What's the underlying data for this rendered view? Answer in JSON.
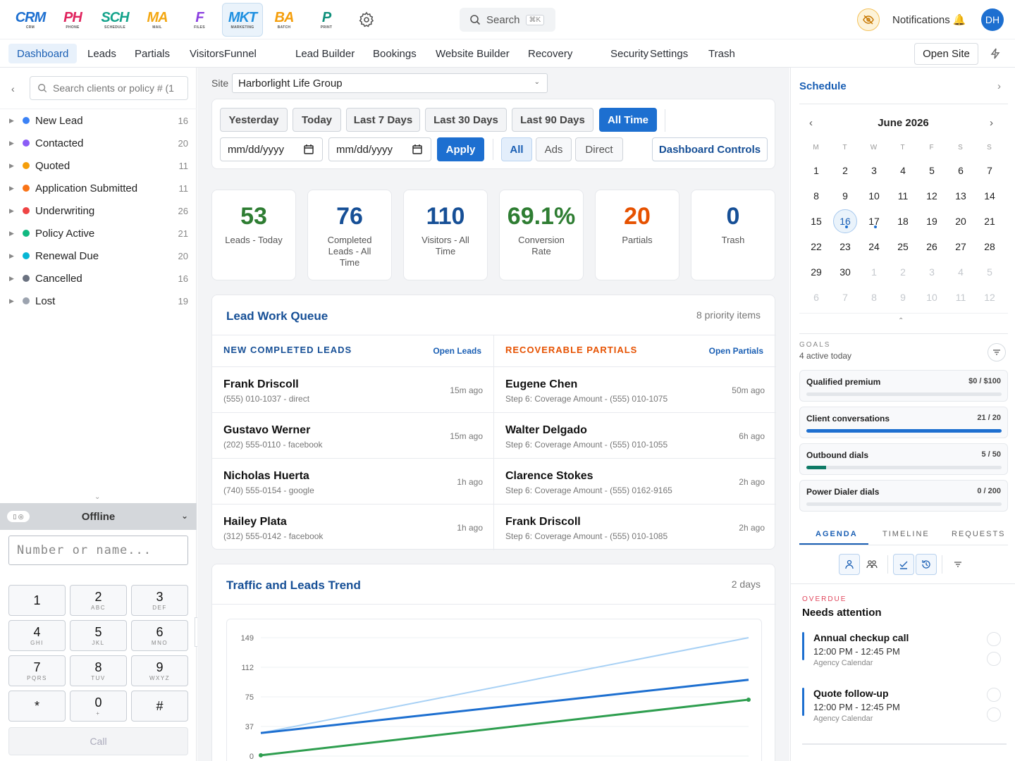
{
  "apps": [
    {
      "name": "crm",
      "logo": "CRM",
      "sub": "CRM",
      "color": "#1d6fd0"
    },
    {
      "name": "phone",
      "logo": "PH",
      "sub": "PHONE",
      "color": "#e0245e"
    },
    {
      "name": "schedule",
      "logo": "SCH",
      "sub": "SCHEDULE",
      "color": "#14a38b"
    },
    {
      "name": "mail",
      "logo": "MA",
      "sub": "MAIL",
      "color": "#f3a712"
    },
    {
      "name": "files",
      "logo": "F",
      "sub": "FILES",
      "color": "#8b3fe0"
    },
    {
      "name": "marketing",
      "logo": "MKT",
      "sub": "MARKETING",
      "color": "#1d8fe0"
    },
    {
      "name": "batch",
      "logo": "BA",
      "sub": "BATCH",
      "color": "#f59e0b"
    },
    {
      "name": "print",
      "logo": "P",
      "sub": "PRINT",
      "color": "#0e8f7a"
    }
  ],
  "search": {
    "label": "Search",
    "kbd": "⌘K"
  },
  "notifications": {
    "label": "Notifications"
  },
  "user": {
    "initials": "DH"
  },
  "nav": [
    "Dashboard",
    "Leads",
    "Partials",
    "Visitors",
    "Funnel",
    "Lead Builder",
    "Bookings",
    "Website Builder",
    "Recovery",
    "Security",
    "Settings",
    "Trash"
  ],
  "nav_right": {
    "open_site": "Open Site"
  },
  "left": {
    "search_placeholder": "Search clients or policy # (1",
    "stages": [
      {
        "label": "New Lead",
        "count": "16",
        "color": "#3b82f6"
      },
      {
        "label": "Contacted",
        "count": "20",
        "color": "#8b5cf6"
      },
      {
        "label": "Quoted",
        "count": "11",
        "color": "#f59e0b"
      },
      {
        "label": "Application Submitted",
        "count": "11",
        "color": "#f97316"
      },
      {
        "label": "Underwriting",
        "count": "26",
        "color": "#ef4444"
      },
      {
        "label": "Policy Active",
        "count": "21",
        "color": "#10b981"
      },
      {
        "label": "Renewal Due",
        "count": "20",
        "color": "#06b6d4"
      },
      {
        "label": "Cancelled",
        "count": "16",
        "color": "#6b7280"
      },
      {
        "label": "Lost",
        "count": "19",
        "color": "#9ca3af"
      }
    ],
    "dialer": {
      "status": "Offline",
      "placeholder": "Number or name...",
      "keys": [
        {
          "d": "1",
          "s": ""
        },
        {
          "d": "2",
          "s": "ABC"
        },
        {
          "d": "3",
          "s": "DEF"
        },
        {
          "d": "4",
          "s": "GHI"
        },
        {
          "d": "5",
          "s": "JKL"
        },
        {
          "d": "6",
          "s": "MNO"
        },
        {
          "d": "7",
          "s": "PQRS"
        },
        {
          "d": "8",
          "s": "TUV"
        },
        {
          "d": "9",
          "s": "WXYZ"
        },
        {
          "d": "*",
          "s": ""
        },
        {
          "d": "0",
          "s": "+"
        },
        {
          "d": "#",
          "s": ""
        }
      ],
      "call": "Call"
    }
  },
  "main": {
    "site_label": "Site",
    "site_value": "Harborlight Life Group",
    "ranges": [
      "Yesterday",
      "Today",
      "Last 7 Days",
      "Last 30 Days",
      "Last 90 Days",
      "All Time"
    ],
    "date_placeholder": "mm/dd/yyyy",
    "apply": "Apply",
    "sources": [
      "All",
      "Ads",
      "Direct"
    ],
    "dashboard_controls": "Dashboard Controls",
    "stats": [
      {
        "value": "53",
        "label": "Leads - Today",
        "color": "#2e7d32"
      },
      {
        "value": "76",
        "label": "Completed Leads - All Time",
        "color": "#164f96"
      },
      {
        "value": "110",
        "label": "Visitors - All Time",
        "color": "#164f96"
      },
      {
        "value": "69.1%",
        "label": "Conversion Rate",
        "color": "#2e7d32"
      },
      {
        "value": "20",
        "label": "Partials",
        "color": "#e65100"
      },
      {
        "value": "0",
        "label": "Trash",
        "color": "#164f96"
      }
    ],
    "queue": {
      "title": "Lead Work Queue",
      "meta": "8 priority items",
      "left_head": "NEW COMPLETED LEADS",
      "left_link": "Open Leads",
      "right_head": "RECOVERABLE PARTIALS",
      "right_link": "Open Partials",
      "left_rows": [
        {
          "name": "Frank Driscoll",
          "sub": "(555) 010-1037 - direct",
          "time": "15m ago"
        },
        {
          "name": "Gustavo Werner",
          "sub": "(202) 555-0110 - facebook",
          "time": "15m ago"
        },
        {
          "name": "Nicholas Huerta",
          "sub": "(740) 555-0154 - google",
          "time": "1h ago"
        },
        {
          "name": "Hailey Plata",
          "sub": "(312) 555-0142 - facebook",
          "time": "1h ago"
        }
      ],
      "right_rows": [
        {
          "name": "Eugene Chen",
          "sub": "Step 6: Coverage Amount - (555) 010-1075",
          "time": "50m ago"
        },
        {
          "name": "Walter Delgado",
          "sub": "Step 6: Coverage Amount - (555) 010-1055",
          "time": "6h ago"
        },
        {
          "name": "Clarence Stokes",
          "sub": "Step 6: Coverage Amount - (555) 0162-9165",
          "time": "2h ago"
        },
        {
          "name": "Frank Driscoll",
          "sub": "Step 6: Coverage Amount - (555) 010-1085",
          "time": "2h ago"
        }
      ]
    },
    "trend": {
      "title": "Traffic and Leads Trend",
      "meta": "2 days"
    }
  },
  "chart_data": {
    "type": "line",
    "x": [
      0,
      1
    ],
    "yticks": [
      "149",
      "112",
      "75",
      "37",
      "0"
    ],
    "ylim": [
      0,
      149
    ],
    "series": [
      {
        "color": "#a8d1f5",
        "values": [
          29,
          149
        ]
      },
      {
        "color": "#1d6fd0",
        "values": [
          29,
          96
        ]
      },
      {
        "color": "#2e9e4f",
        "values": [
          1,
          71
        ]
      }
    ]
  },
  "right": {
    "title": "Schedule",
    "month": "June 2026",
    "weekdays": [
      "M",
      "T",
      "W",
      "T",
      "F",
      "S",
      "S"
    ],
    "weeks": [
      [
        "1",
        "2",
        "3",
        "4",
        "5",
        "6",
        "7"
      ],
      [
        "8",
        "9",
        "10",
        "11",
        "12",
        "13",
        "14"
      ],
      [
        "15",
        "16",
        "17",
        "18",
        "19",
        "20",
        "21"
      ],
      [
        "22",
        "23",
        "24",
        "25",
        "26",
        "27",
        "28"
      ],
      [
        "29",
        "30",
        "1",
        "2",
        "3",
        "4",
        "5"
      ],
      [
        "6",
        "7",
        "8",
        "9",
        "10",
        "11",
        "12"
      ]
    ],
    "today": "16",
    "goals_label": "GOALS",
    "goals_sub": "4 active today",
    "goals": [
      {
        "title": "Qualified premium",
        "value": "$0 / $100",
        "progress": 0,
        "color": "#1d6fd0"
      },
      {
        "title": "Client conversations",
        "value": "21 / 20",
        "progress": 1,
        "color": "#1d6fd0"
      },
      {
        "title": "Outbound dials",
        "value": "5 / 50",
        "progress": 0.1,
        "color": "#0e7a66"
      },
      {
        "title": "Power Dialer dials",
        "value": "0 / 200",
        "progress": 0,
        "color": "#1d6fd0"
      }
    ],
    "tabs": [
      "AGENDA",
      "TIMELINE",
      "REQUESTS"
    ],
    "overdue_label": "OVERDUE",
    "overdue_title": "Needs attention",
    "events": [
      {
        "title": "Annual checkup call",
        "time": "12:00 PM - 12:45 PM",
        "calendar": "Agency Calendar"
      },
      {
        "title": "Quote follow-up",
        "time": "12:00 PM - 12:45 PM",
        "calendar": "Agency Calendar"
      }
    ]
  }
}
